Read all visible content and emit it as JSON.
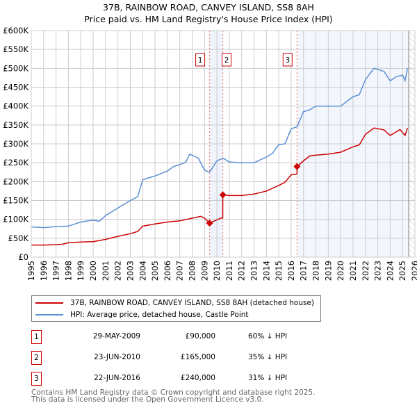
{
  "chart_data": {
    "type": "line",
    "title": "37B, RAINBOW ROAD, CANVEY ISLAND, SS8 8AH",
    "subtitle": "Price paid vs. HM Land Registry's House Price Index (HPI)",
    "xlim": [
      1995,
      2026
    ],
    "ylim": [
      0,
      600000
    ],
    "grid": true,
    "y_ticks": [
      "£0",
      "£50K",
      "£100K",
      "£150K",
      "£200K",
      "£250K",
      "£300K",
      "£350K",
      "£400K",
      "£450K",
      "£500K",
      "£550K",
      "£600K"
    ],
    "x_ticks": [
      "1995",
      "1996",
      "1997",
      "1998",
      "1999",
      "2000",
      "2001",
      "2002",
      "2003",
      "2004",
      "2005",
      "2006",
      "2007",
      "2008",
      "2009",
      "2010",
      "2011",
      "2012",
      "2013",
      "2014",
      "2015",
      "2016",
      "2017",
      "2018",
      "2019",
      "2020",
      "2021",
      "2022",
      "2023",
      "2024",
      "2025",
      "2026"
    ],
    "series": [
      {
        "name": "37B, RAINBOW ROAD, CANVEY ISLAND, SS8 8AH (detached house)",
        "color": "#cc0000",
        "x": [
          1995,
          1996,
          1997,
          1997.5,
          1998,
          1999,
          2000,
          2001,
          2002,
          2003,
          2003.6,
          2004,
          2005,
          2006,
          2007,
          2008,
          2008.7,
          2009,
          2009.41,
          2010.3,
          2010.47,
          2010.48,
          2011,
          2012,
          2013,
          2014,
          2015,
          2015.5,
          2016,
          2016.47,
          2016.48,
          2017,
          2017.5,
          2018,
          2019,
          2020,
          2021,
          2021.5,
          2022,
          2022.7,
          2023.5,
          2024,
          2024.8,
          2025.2,
          2025.4
        ],
        "y": [
          32000,
          32000,
          33000,
          34000,
          38000,
          40000,
          41000,
          47000,
          55000,
          62000,
          68000,
          82000,
          88000,
          93000,
          96000,
          103000,
          108000,
          103000,
          90000,
          103000,
          104000,
          165000,
          163000,
          163000,
          167000,
          175000,
          190000,
          198000,
          218000,
          220000,
          240000,
          255000,
          268000,
          270000,
          273000,
          278000,
          292000,
          297000,
          325000,
          342000,
          337000,
          322000,
          338000,
          322000,
          342000
        ]
      },
      {
        "name": "HPI: Average price, detached house, Castle Point",
        "color": "#5b8fd4",
        "x": [
          1995,
          1996,
          1997,
          1998,
          1999,
          2000,
          2000.5,
          2001,
          2002,
          2003,
          2003.6,
          2004,
          2005,
          2006,
          2006.5,
          2007,
          2007.5,
          2007.8,
          2008.5,
          2009,
          2009.41,
          2010,
          2010.5,
          2011,
          2012,
          2013,
          2014,
          2014.5,
          2015,
          2015.5,
          2016,
          2016.47,
          2017,
          2017.5,
          2018,
          2019,
          2020,
          2021,
          2021.5,
          2022,
          2022.7,
          2023.5,
          2024,
          2024.5,
          2025,
          2025.2,
          2025.4
        ],
        "y": [
          80000,
          78000,
          81000,
          82000,
          93000,
          98000,
          95000,
          110000,
          130000,
          150000,
          160000,
          205000,
          215000,
          228000,
          240000,
          245000,
          252000,
          273000,
          262000,
          230000,
          225000,
          255000,
          262000,
          252000,
          250000,
          250000,
          265000,
          275000,
          298000,
          300000,
          340000,
          345000,
          385000,
          390000,
          400000,
          400000,
          400000,
          425000,
          430000,
          470000,
          500000,
          492000,
          467000,
          478000,
          482000,
          467000,
          500000
        ]
      }
    ],
    "sales": [
      {
        "label": "1",
        "x": 2009.41,
        "y": 90000
      },
      {
        "label": "2",
        "x": 2010.48,
        "y": 165000
      },
      {
        "label": "3",
        "x": 2016.47,
        "y": 240000
      }
    ]
  },
  "legend": [
    {
      "label": "37B, RAINBOW ROAD, CANVEY ISLAND, SS8 8AH (detached house)",
      "color": "#cc0000"
    },
    {
      "label": "HPI: Average price, detached house, Castle Point",
      "color": "#5b8fd4"
    }
  ],
  "transactions": [
    {
      "num": "1",
      "date": "29-MAY-2009",
      "price": "£90,000",
      "hpi": "60% ↓ HPI"
    },
    {
      "num": "2",
      "date": "23-JUN-2010",
      "price": "£165,000",
      "hpi": "35% ↓ HPI"
    },
    {
      "num": "3",
      "date": "22-JUN-2016",
      "price": "£240,000",
      "hpi": "31% ↓ HPI"
    }
  ],
  "footer": {
    "line1": "Contains HM Land Registry data © Crown copyright and database right 2025.",
    "line2": "This data is licensed under the Open Government Licence v3.0."
  }
}
